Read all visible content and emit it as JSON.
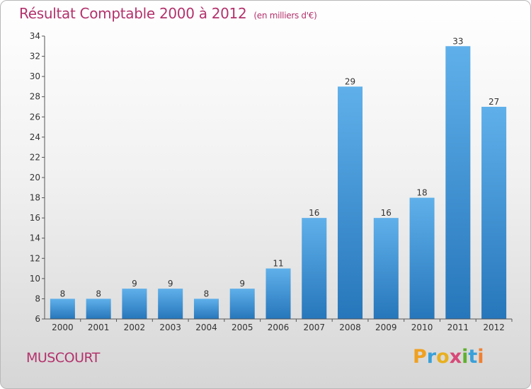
{
  "chart_data": {
    "type": "bar",
    "title": "Résultat Comptable 2000 à 2012",
    "subtitle": "(en milliers d'€)",
    "categories": [
      "2000",
      "2001",
      "2002",
      "2003",
      "2004",
      "2005",
      "2006",
      "2007",
      "2008",
      "2009",
      "2010",
      "2011",
      "2012"
    ],
    "values": [
      8,
      8,
      9,
      9,
      8,
      9,
      11,
      16,
      29,
      16,
      18,
      33,
      27
    ],
    "ylim": [
      6,
      34
    ],
    "yticks": [
      6,
      8,
      10,
      12,
      14,
      16,
      18,
      20,
      22,
      24,
      26,
      28,
      30,
      32,
      34
    ],
    "xlabel": "",
    "ylabel": "",
    "grid": false,
    "bar_color": "#3d8fd8"
  },
  "footer": {
    "place": "MUSCOURT",
    "brand_letters": [
      {
        "ch": "P",
        "color": "#f0a020"
      },
      {
        "ch": "r",
        "color": "#3aa0d8"
      },
      {
        "ch": "o",
        "color": "#e8b020"
      },
      {
        "ch": "x",
        "color": "#d84878"
      },
      {
        "ch": "i",
        "color": "#60b030"
      },
      {
        "ch": "t",
        "color": "#3aa0d8"
      },
      {
        "ch": "i",
        "color": "#f08030"
      }
    ]
  },
  "colors": {
    "title": "#b3326c",
    "axis": "#555555"
  }
}
